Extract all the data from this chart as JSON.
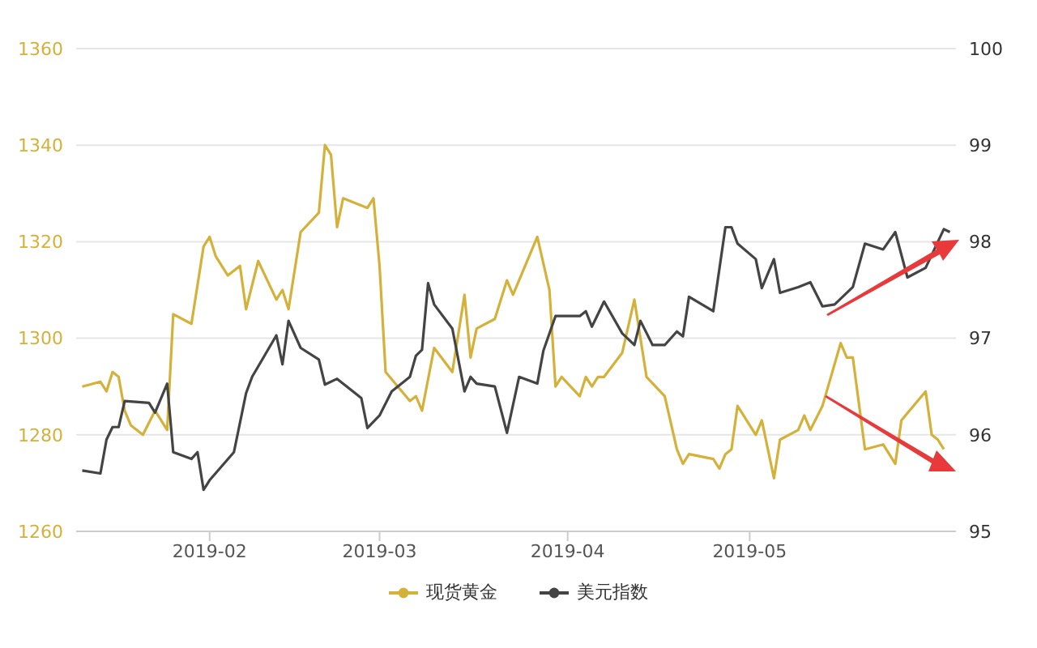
{
  "chart_data": {
    "type": "line",
    "xlim": [
      "2019-01-10",
      "2019-06-04"
    ],
    "xticks": [
      {
        "value": "2019-02-01",
        "label": "2019-02"
      },
      {
        "value": "2019-03-01",
        "label": "2019-03"
      },
      {
        "value": "2019-04-01",
        "label": "2019-04"
      },
      {
        "value": "2019-05-01",
        "label": "2019-05"
      }
    ],
    "ylim": [
      1260,
      1360
    ],
    "yticks": [
      1260,
      1280,
      1300,
      1320,
      1340,
      1360
    ],
    "y2lim": [
      95,
      100
    ],
    "y2ticks": [
      95,
      96,
      97,
      98,
      99,
      100
    ],
    "grid": "y",
    "legend": "bottom",
    "series": [
      {
        "name": "现货黄金",
        "color": "#d4b13a",
        "x": [
          "2019-01-11",
          "2019-01-14",
          "2019-01-15",
          "2019-01-16",
          "2019-01-17",
          "2019-01-18",
          "2019-01-19",
          "2019-01-21",
          "2019-01-23",
          "2019-01-24",
          "2019-01-25",
          "2019-01-26",
          "2019-01-29",
          "2019-01-31",
          "2019-02-01",
          "2019-02-02",
          "2019-02-04",
          "2019-02-06",
          "2019-02-07",
          "2019-02-09",
          "2019-02-12",
          "2019-02-13",
          "2019-02-14",
          "2019-02-16",
          "2019-02-19",
          "2019-02-20",
          "2019-02-21",
          "2019-02-22",
          "2019-02-23",
          "2019-02-25",
          "2019-02-27",
          "2019-02-28",
          "2019-03-01",
          "2019-03-02",
          "2019-03-06",
          "2019-03-07",
          "2019-03-08",
          "2019-03-10",
          "2019-03-13",
          "2019-03-15",
          "2019-03-16",
          "2019-03-17",
          "2019-03-20",
          "2019-03-22",
          "2019-03-23",
          "2019-03-27",
          "2019-03-29",
          "2019-03-30",
          "2019-03-31",
          "2019-04-03",
          "2019-04-04",
          "2019-04-05",
          "2019-04-06",
          "2019-04-07",
          "2019-04-10",
          "2019-04-12",
          "2019-04-14",
          "2019-04-17",
          "2019-04-19",
          "2019-04-20",
          "2019-04-21",
          "2019-04-25",
          "2019-04-26",
          "2019-04-27",
          "2019-04-28",
          "2019-04-29",
          "2019-05-02",
          "2019-05-03",
          "2019-05-05",
          "2019-05-06",
          "2019-05-09",
          "2019-05-10",
          "2019-05-11",
          "2019-05-13",
          "2019-05-16",
          "2019-05-17",
          "2019-05-18",
          "2019-05-20",
          "2019-05-23",
          "2019-05-25",
          "2019-05-26",
          "2019-05-30",
          "2019-05-31",
          "2019-06-01",
          "2019-06-02"
        ],
        "values": [
          1290,
          1291,
          1289,
          1293,
          1292,
          1285,
          1282,
          1280,
          1285,
          1283,
          1281,
          1305,
          1303,
          1319,
          1321,
          1317,
          1313,
          1315,
          1306,
          1316,
          1308,
          1310,
          1306,
          1322,
          1326,
          1340,
          1338,
          1323,
          1329,
          1328,
          1327,
          1329,
          1315,
          1293,
          1287,
          1288,
          1285,
          1298,
          1293,
          1309,
          1296,
          1302,
          1304,
          1312,
          1309,
          1321,
          1310,
          1290,
          1292,
          1288,
          1292,
          1290,
          1292,
          1292,
          1297,
          1308,
          1292,
          1288,
          1277,
          1274,
          1276,
          1275,
          1273,
          1276,
          1277,
          1286,
          1280,
          1283,
          1271,
          1279,
          1281,
          1284,
          1281,
          1286,
          1299,
          1296,
          1296,
          1277,
          1278,
          1274,
          1283,
          1289,
          1280,
          1279,
          1277
        ]
      },
      {
        "name": "美元指数",
        "color": "#444444",
        "axis": "y2",
        "x": [
          "2019-01-11",
          "2019-01-14",
          "2019-01-15",
          "2019-01-16",
          "2019-01-17",
          "2019-01-18",
          "2019-01-22",
          "2019-01-23",
          "2019-01-25",
          "2019-01-26",
          "2019-01-29",
          "2019-01-30",
          "2019-01-31",
          "2019-02-01",
          "2019-02-05",
          "2019-02-07",
          "2019-02-08",
          "2019-02-12",
          "2019-02-13",
          "2019-02-14",
          "2019-02-16",
          "2019-02-19",
          "2019-02-20",
          "2019-02-22",
          "2019-02-25",
          "2019-02-26",
          "2019-02-27",
          "2019-03-01",
          "2019-03-03",
          "2019-03-06",
          "2019-03-07",
          "2019-03-08",
          "2019-03-09",
          "2019-03-10",
          "2019-03-13",
          "2019-03-15",
          "2019-03-16",
          "2019-03-17",
          "2019-03-20",
          "2019-03-22",
          "2019-03-24",
          "2019-03-27",
          "2019-03-28",
          "2019-03-30",
          "2019-04-03",
          "2019-04-04",
          "2019-04-05",
          "2019-04-07",
          "2019-04-10",
          "2019-04-12",
          "2019-04-13",
          "2019-04-15",
          "2019-04-17",
          "2019-04-19",
          "2019-04-20",
          "2019-04-21",
          "2019-04-25",
          "2019-04-27",
          "2019-04-28",
          "2019-04-29",
          "2019-05-02",
          "2019-05-03",
          "2019-05-05",
          "2019-05-06",
          "2019-05-09",
          "2019-05-11",
          "2019-05-13",
          "2019-05-15",
          "2019-05-18",
          "2019-05-20",
          "2019-05-23",
          "2019-05-25",
          "2019-05-27",
          "2019-05-30",
          "2019-06-02",
          "2019-06-03"
        ],
        "values": [
          95.63,
          95.6,
          95.95,
          96.08,
          96.08,
          96.35,
          96.33,
          96.23,
          96.53,
          95.82,
          95.75,
          95.82,
          95.43,
          95.53,
          95.82,
          96.43,
          96.6,
          97.03,
          96.73,
          97.18,
          96.9,
          96.78,
          96.52,
          96.58,
          96.43,
          96.38,
          96.07,
          96.2,
          96.45,
          96.6,
          96.82,
          96.88,
          97.57,
          97.35,
          97.1,
          96.45,
          96.6,
          96.53,
          96.5,
          96.02,
          96.6,
          96.53,
          96.87,
          97.23,
          97.23,
          97.28,
          97.12,
          97.38,
          97.05,
          96.93,
          97.18,
          96.93,
          96.93,
          97.07,
          97.02,
          97.43,
          97.28,
          98.15,
          98.15,
          97.98,
          97.82,
          97.52,
          97.82,
          97.47,
          97.53,
          97.58,
          97.33,
          97.35,
          97.53,
          97.98,
          97.92,
          98.1,
          97.63,
          97.73,
          98.13,
          98.1
        ]
      }
    ]
  }
}
